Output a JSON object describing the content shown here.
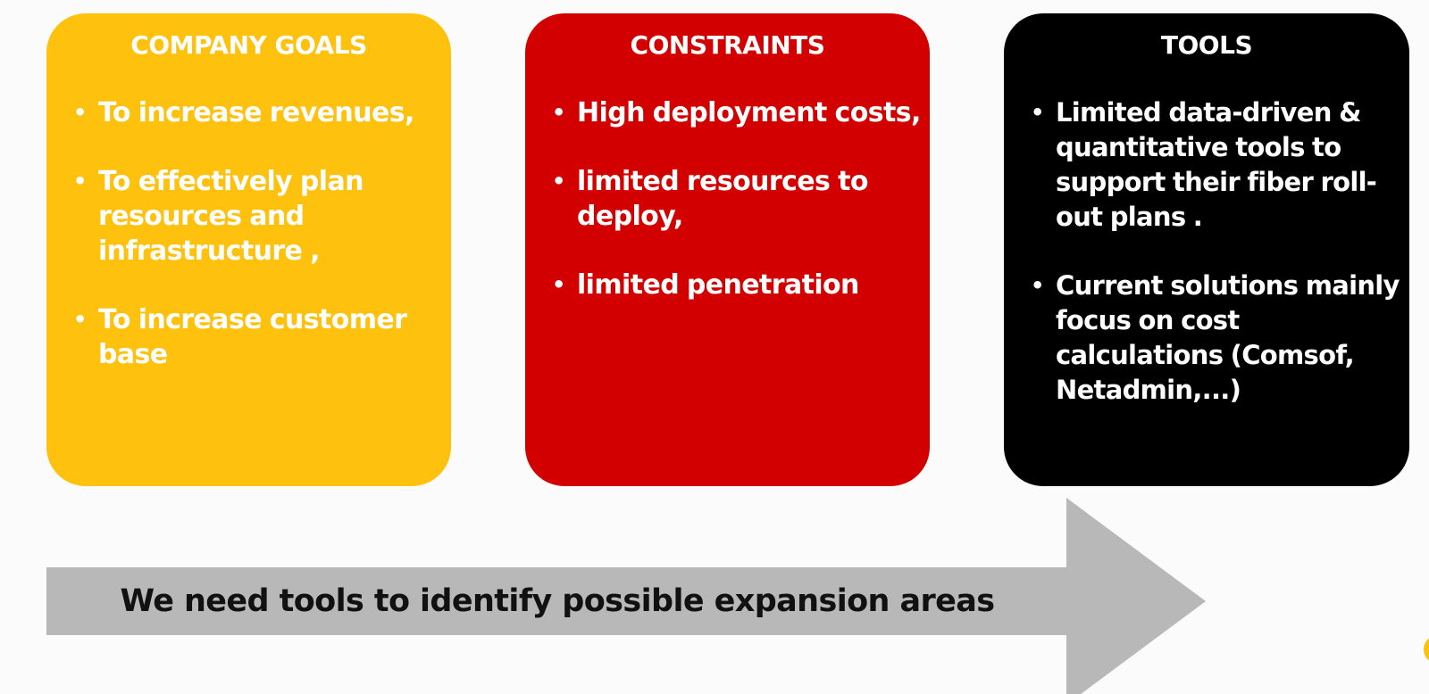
{
  "colors": {
    "background": "#fbfbfb",
    "goals": "#fdc10e",
    "constraints": "#d30000",
    "tools": "#000000",
    "arrow": "#b8b8b8",
    "accent_dot": "#fdc10e"
  },
  "cards": [
    {
      "title": "COMPANY GOALS",
      "bullets": [
        "To increase revenues,",
        "To effectively plan resources and infrastructure ,",
        " To increase customer base"
      ]
    },
    {
      "title": "CONSTRAINTS",
      "bullets": [
        "High deployment costs,",
        " limited resources to deploy,",
        " limited penetration"
      ]
    },
    {
      "title": "TOOLS",
      "bullets": [
        "Limited data-driven & quantitative tools to support their fiber roll-out plans .",
        "Current solutions mainly focus on cost calculations (Comsof, Netadmin,...)"
      ]
    }
  ],
  "arrow": {
    "text": "We need tools to identify possible expansion areas"
  },
  "bullet_glyph": "•"
}
